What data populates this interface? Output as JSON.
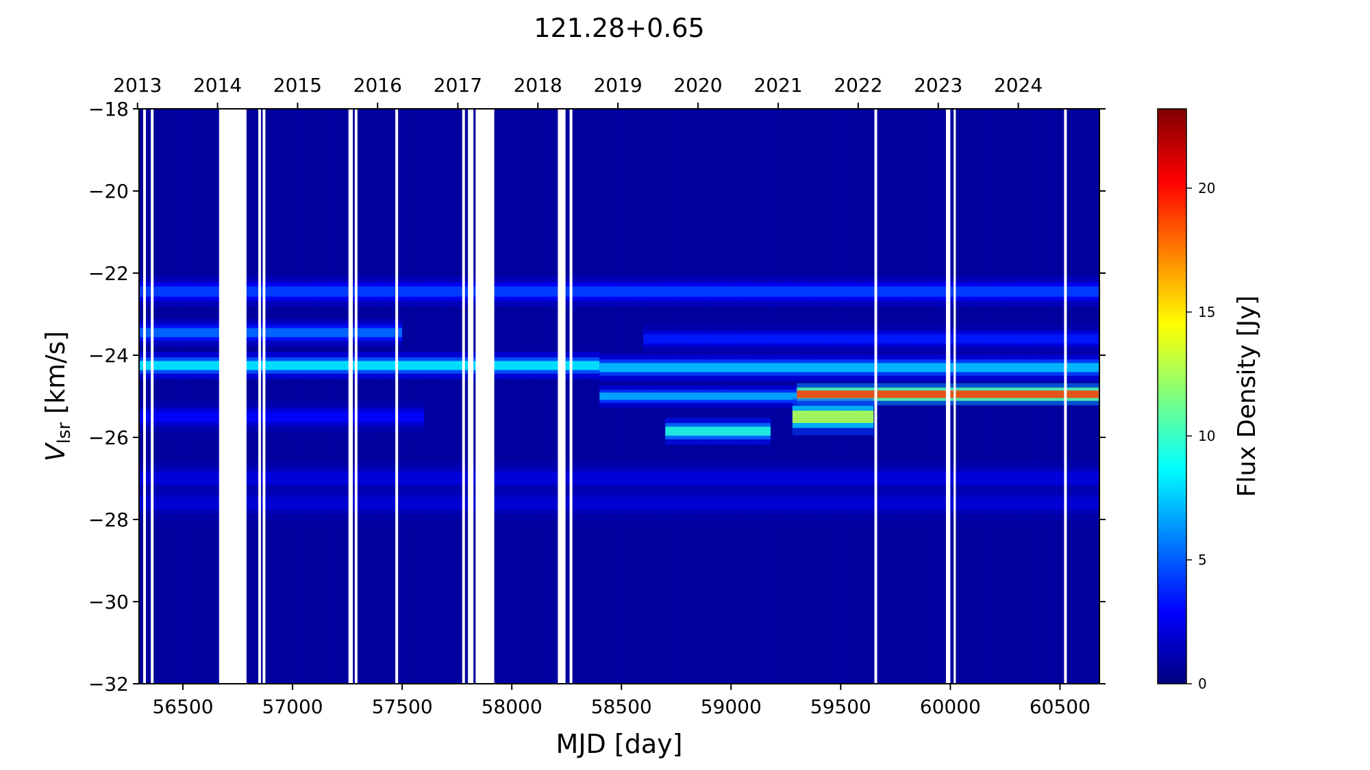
{
  "chart_data": {
    "type": "heatmap",
    "title": "121.28+0.65",
    "xlabel": "MJD [day]",
    "ylabel_main": "V",
    "ylabel_sub": "lsr",
    "ylabel_unit": " [km/s]",
    "xlim": [
      56300,
      60680
    ],
    "ylim": [
      -32,
      -18
    ],
    "x_ticks": [
      56500,
      57000,
      57500,
      58000,
      58500,
      59000,
      59500,
      60000,
      60500
    ],
    "y_ticks": [
      -32,
      -30,
      -28,
      -26,
      -24,
      -22,
      -20,
      -18
    ],
    "top_axis_years": [
      {
        "label": "2013",
        "mjd": 56293
      },
      {
        "label": "2014",
        "mjd": 56658
      },
      {
        "label": "2015",
        "mjd": 57023
      },
      {
        "label": "2016",
        "mjd": 57388
      },
      {
        "label": "2017",
        "mjd": 57754
      },
      {
        "label": "2018",
        "mjd": 58119
      },
      {
        "label": "2019",
        "mjd": 58484
      },
      {
        "label": "2020",
        "mjd": 58849
      },
      {
        "label": "2021",
        "mjd": 59215
      },
      {
        "label": "2022",
        "mjd": 59580
      },
      {
        "label": "2023",
        "mjd": 59945
      },
      {
        "label": "2024",
        "mjd": 60310
      }
    ],
    "colorbar": {
      "label": "Flux Density [Jy]",
      "range": [
        0,
        23.2
      ],
      "ticks": [
        0,
        5,
        10,
        15,
        20
      ],
      "colormap": "jet"
    },
    "background_flux": 0.6,
    "data_gaps_mjd": [
      [
        56665,
        56790
      ],
      [
        57255,
        57275
      ],
      [
        57800,
        57825
      ],
      [
        57835,
        57920
      ],
      [
        58210,
        58245
      ],
      [
        59980,
        60000
      ],
      [
        60015,
        60025
      ]
    ],
    "thin_gaps_mjd": [
      56325,
      56360,
      56850,
      56870,
      57290,
      57475,
      57780,
      58270,
      59660,
      60525
    ],
    "spectral_features": [
      {
        "v": -22.45,
        "mjd_start": 56300,
        "mjd_end": 60680,
        "peak_flux": 4.5,
        "width_v": 0.25
      },
      {
        "v": -23.45,
        "mjd_start": 56300,
        "mjd_end": 57500,
        "peak_flux": 5.5,
        "width_v": 0.22
      },
      {
        "v": -23.6,
        "mjd_start": 58600,
        "mjd_end": 60680,
        "peak_flux": 3.5,
        "width_v": 0.22
      },
      {
        "v": -24.25,
        "mjd_start": 56300,
        "mjd_end": 58400,
        "peak_flux": 8.5,
        "width_v": 0.22
      },
      {
        "v": -24.3,
        "mjd_start": 58400,
        "mjd_end": 60680,
        "peak_flux": 7.5,
        "width_v": 0.22
      },
      {
        "v": -25.0,
        "mjd_start": 58400,
        "mjd_end": 59300,
        "peak_flux": 7.0,
        "width_v": 0.18
      },
      {
        "v": -24.95,
        "mjd_start": 59300,
        "mjd_end": 60680,
        "peak_flux": 19.0,
        "width_v": 0.18
      },
      {
        "v": -25.85,
        "mjd_start": 58700,
        "mjd_end": 59180,
        "peak_flux": 9.5,
        "width_v": 0.22
      },
      {
        "v": -25.5,
        "mjd_start": 59280,
        "mjd_end": 59650,
        "peak_flux": 13.0,
        "width_v": 0.3
      },
      {
        "v": -25.5,
        "mjd_start": 56300,
        "mjd_end": 57600,
        "peak_flux": 3.0,
        "width_v": 0.25
      },
      {
        "v": -27.0,
        "mjd_start": 56300,
        "mjd_end": 60680,
        "peak_flux": 2.2,
        "width_v": 0.3
      },
      {
        "v": -27.6,
        "mjd_start": 56300,
        "mjd_end": 60680,
        "peak_flux": 2.0,
        "width_v": 0.3
      }
    ]
  }
}
